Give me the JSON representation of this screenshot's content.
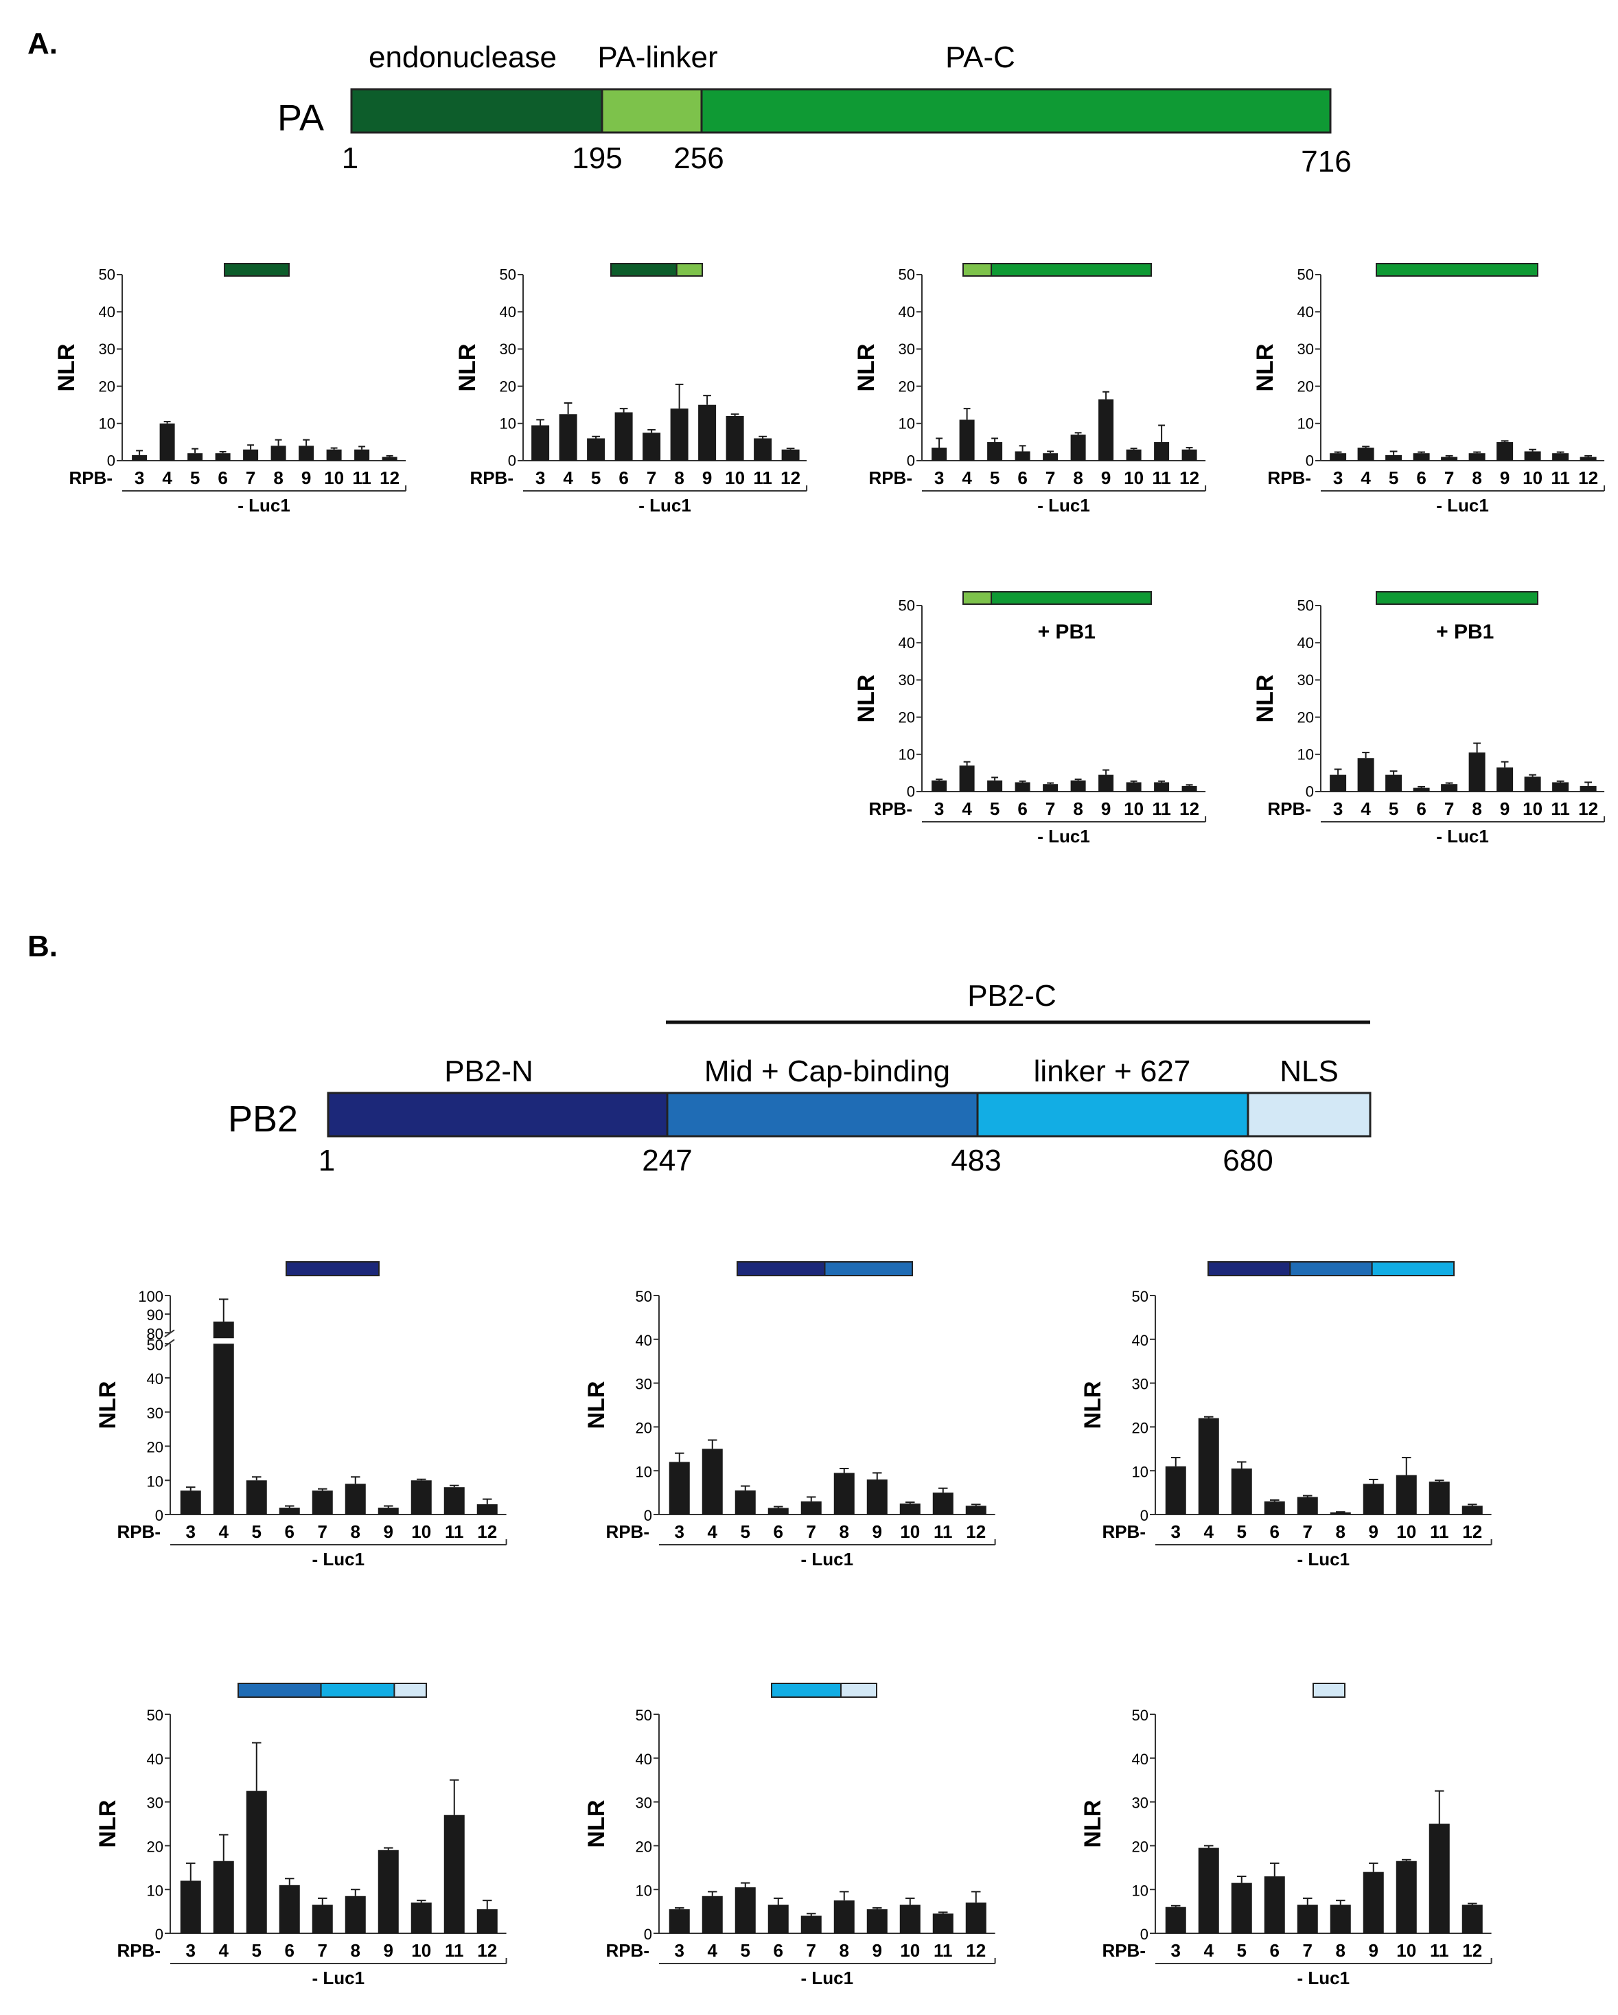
{
  "colors": {
    "endonuclease": "#0d5d2b",
    "pa_linker": "#7dc24b",
    "pa_c": "#0f9a34",
    "pb2_n": "#1c2879",
    "mid_cap": "#1f6cb5",
    "linker_627": "#12ade4",
    "nls": "#d3e8f6",
    "bar": "#1a1a1a",
    "outline": "#222222"
  },
  "panel_a": {
    "label": "A.",
    "protein": "PA",
    "domains": [
      {
        "name": "endonuclease",
        "start": 1,
        "end": 195,
        "color": "#0d5d2b"
      },
      {
        "name": "PA-linker",
        "start": 195,
        "end": 256,
        "color": "#7dc24b"
      },
      {
        "name": "PA-C",
        "start": 256,
        "end": 716,
        "color": "#0f9a34"
      }
    ],
    "positions": [
      "1",
      "195",
      "256",
      "716"
    ]
  },
  "panel_b": {
    "label": "B.",
    "protein": "PB2",
    "bracket_label": "PB2-C",
    "domains": [
      {
        "name": "PB2-N",
        "start": 1,
        "end": 247,
        "color": "#1c2879"
      },
      {
        "name": "Mid + Cap-binding",
        "start": 247,
        "end": 483,
        "color": "#1f6cb5"
      },
      {
        "name": "linker + 627",
        "start": 483,
        "end": 680,
        "color": "#12ade4"
      },
      {
        "name": "NLS",
        "start": 680,
        "end": 759,
        "color": "#d3e8f6"
      }
    ],
    "positions": [
      "1",
      "247",
      "483",
      "680"
    ]
  },
  "axis_text": {
    "ylabel": "NLR",
    "xprefix": "RPB-",
    "xgroup": "- Luc1",
    "pb1": "+ PB1"
  },
  "chart_data": [
    {
      "type": "bar",
      "id": "A1",
      "construct": "endonuclease",
      "segments": [
        "#0d5d2b"
      ],
      "annotation": "",
      "ylabel": "NLR",
      "ylim": [
        0,
        50
      ],
      "yticks": [
        0,
        10,
        20,
        30,
        40,
        50
      ],
      "categories": [
        "3",
        "4",
        "5",
        "6",
        "7",
        "8",
        "9",
        "10",
        "11",
        "12"
      ],
      "values": [
        1.5,
        10,
        2,
        2,
        3,
        4,
        4,
        3,
        3,
        1
      ],
      "errors": [
        1.2,
        0.5,
        1.2,
        0.4,
        1.2,
        1.6,
        1.6,
        0.4,
        0.8,
        0.3
      ]
    },
    {
      "type": "bar",
      "id": "A2",
      "construct": "endonuclease + PA-linker",
      "segments": [
        "#0d5d2b",
        "#7dc24b"
      ],
      "annotation": "",
      "ylabel": "NLR",
      "ylim": [
        0,
        50
      ],
      "yticks": [
        0,
        10,
        20,
        30,
        40,
        50
      ],
      "categories": [
        "3",
        "4",
        "5",
        "6",
        "7",
        "8",
        "9",
        "10",
        "11",
        "12"
      ],
      "values": [
        9.5,
        12.5,
        6,
        13,
        7.5,
        14,
        15,
        12,
        6,
        3
      ],
      "errors": [
        1.5,
        3,
        0.5,
        1,
        0.8,
        6.5,
        2.5,
        0.5,
        0.5,
        0.3
      ]
    },
    {
      "type": "bar",
      "id": "A3",
      "construct": "PA-linker + PA-C",
      "segments": [
        "#7dc24b",
        "#0f9a34"
      ],
      "annotation": "",
      "ylabel": "NLR",
      "ylim": [
        0,
        50
      ],
      "yticks": [
        0,
        10,
        20,
        30,
        40,
        50
      ],
      "categories": [
        "3",
        "4",
        "5",
        "6",
        "7",
        "8",
        "9",
        "10",
        "11",
        "12"
      ],
      "values": [
        3.5,
        11,
        5,
        2.5,
        2,
        7,
        16.5,
        3,
        5,
        3
      ],
      "errors": [
        2.5,
        3,
        1,
        1.5,
        0.5,
        0.5,
        2,
        0.3,
        4.5,
        0.5
      ]
    },
    {
      "type": "bar",
      "id": "A4",
      "construct": "PA-C",
      "segments": [
        "#0f9a34"
      ],
      "annotation": "",
      "ylabel": "NLR",
      "ylim": [
        0,
        50
      ],
      "yticks": [
        0,
        10,
        20,
        30,
        40,
        50
      ],
      "categories": [
        "3",
        "4",
        "5",
        "6",
        "7",
        "8",
        "9",
        "10",
        "11",
        "12"
      ],
      "values": [
        2,
        3.5,
        1.5,
        2,
        1,
        2,
        5,
        2.5,
        2,
        1
      ],
      "errors": [
        0.3,
        0.3,
        1,
        0.3,
        0.3,
        0.3,
        0.3,
        0.5,
        0.3,
        0.3
      ]
    },
    {
      "type": "bar",
      "id": "A5",
      "construct": "PA-linker + PA-C",
      "segments": [
        "#7dc24b",
        "#0f9a34"
      ],
      "annotation": "+ PB1",
      "ylabel": "NLR",
      "ylim": [
        0,
        50
      ],
      "yticks": [
        0,
        10,
        20,
        30,
        40,
        50
      ],
      "categories": [
        "3",
        "4",
        "5",
        "6",
        "7",
        "8",
        "9",
        "10",
        "11",
        "12"
      ],
      "values": [
        3,
        7,
        3,
        2.5,
        2,
        3,
        4.5,
        2.5,
        2.5,
        1.5
      ],
      "errors": [
        0.3,
        1,
        0.8,
        0.3,
        0.3,
        0.3,
        1.3,
        0.3,
        0.3,
        0.3
      ]
    },
    {
      "type": "bar",
      "id": "A6",
      "construct": "PA-C",
      "segments": [
        "#0f9a34"
      ],
      "annotation": "+ PB1",
      "ylabel": "NLR",
      "ylim": [
        0,
        50
      ],
      "yticks": [
        0,
        10,
        20,
        30,
        40,
        50
      ],
      "categories": [
        "3",
        "4",
        "5",
        "6",
        "7",
        "8",
        "9",
        "10",
        "11",
        "12"
      ],
      "values": [
        4.5,
        9,
        4.5,
        1,
        2,
        10.5,
        6.5,
        4,
        2.5,
        1.5
      ],
      "errors": [
        1.5,
        1.5,
        1,
        0.3,
        0.3,
        2.5,
        1.5,
        0.5,
        0.3,
        1
      ]
    },
    {
      "type": "bar",
      "id": "B1",
      "construct": "PB2-N",
      "segments": [
        "#1c2879"
      ],
      "annotation": "",
      "ylabel": "NLR",
      "ylim": [
        0,
        100
      ],
      "axis_break": [
        50,
        80
      ],
      "yticks": [
        0,
        10,
        20,
        30,
        40,
        50,
        80,
        90,
        100
      ],
      "categories": [
        "3",
        "4",
        "5",
        "6",
        "7",
        "8",
        "9",
        "10",
        "11",
        "12"
      ],
      "values": [
        7,
        86,
        10,
        2,
        7,
        9,
        2,
        10,
        8,
        3
      ],
      "errors": [
        1,
        12,
        1,
        0.5,
        0.5,
        2,
        0.5,
        0.3,
        0.5,
        1.5
      ]
    },
    {
      "type": "bar",
      "id": "B2",
      "construct": "PB2-N + Mid + Cap-binding",
      "segments": [
        "#1c2879",
        "#1f6cb5"
      ],
      "annotation": "",
      "ylabel": "NLR",
      "ylim": [
        0,
        50
      ],
      "yticks": [
        0,
        10,
        20,
        30,
        40,
        50
      ],
      "categories": [
        "3",
        "4",
        "5",
        "6",
        "7",
        "8",
        "9",
        "10",
        "11",
        "12"
      ],
      "values": [
        12,
        15,
        5.5,
        1.5,
        3,
        9.5,
        8,
        2.5,
        5,
        2
      ],
      "errors": [
        2,
        2,
        1,
        0.3,
        1,
        1,
        1.5,
        0.3,
        1,
        0.3
      ]
    },
    {
      "type": "bar",
      "id": "B3",
      "construct": "PB2-N + Mid + Cap-binding + linker + 627",
      "segments": [
        "#1c2879",
        "#1f6cb5",
        "#12ade4"
      ],
      "annotation": "",
      "ylabel": "NLR",
      "ylim": [
        0,
        50
      ],
      "yticks": [
        0,
        10,
        20,
        30,
        40,
        50
      ],
      "categories": [
        "3",
        "4",
        "5",
        "6",
        "7",
        "8",
        "9",
        "10",
        "11",
        "12"
      ],
      "values": [
        11,
        22,
        10.5,
        3,
        4,
        0.5,
        7,
        9,
        7.5,
        2
      ],
      "errors": [
        2,
        0.3,
        1.5,
        0.3,
        0.3,
        0.1,
        1,
        4,
        0.3,
        0.3
      ]
    },
    {
      "type": "bar",
      "id": "B4",
      "construct": "Mid + Cap-binding + linker + 627 + NLS",
      "segments": [
        "#1f6cb5",
        "#12ade4",
        "#d3e8f6"
      ],
      "annotation": "",
      "ylabel": "NLR",
      "ylim": [
        0,
        50
      ],
      "yticks": [
        0,
        10,
        20,
        30,
        40,
        50
      ],
      "categories": [
        "3",
        "4",
        "5",
        "6",
        "7",
        "8",
        "9",
        "10",
        "11",
        "12"
      ],
      "values": [
        12,
        16.5,
        32.5,
        11,
        6.5,
        8.5,
        19,
        7,
        27,
        5.5
      ],
      "errors": [
        4,
        6,
        11,
        1.5,
        1.5,
        1.5,
        0.5,
        0.5,
        8,
        2
      ]
    },
    {
      "type": "bar",
      "id": "B5",
      "construct": "linker + 627 + NLS",
      "segments": [
        "#12ade4",
        "#d3e8f6"
      ],
      "annotation": "",
      "ylabel": "NLR",
      "ylim": [
        0,
        50
      ],
      "yticks": [
        0,
        10,
        20,
        30,
        40,
        50
      ],
      "categories": [
        "3",
        "4",
        "5",
        "6",
        "7",
        "8",
        "9",
        "10",
        "11",
        "12"
      ],
      "values": [
        5.5,
        8.5,
        10.5,
        6.5,
        4,
        7.5,
        5.5,
        6.5,
        4.5,
        7
      ],
      "errors": [
        0.3,
        1,
        1,
        1.5,
        0.5,
        2,
        0.3,
        1.5,
        0.3,
        2.5
      ]
    },
    {
      "type": "bar",
      "id": "B6",
      "construct": "NLS",
      "segments": [
        "#d3e8f6"
      ],
      "annotation": "",
      "ylabel": "NLR",
      "ylim": [
        0,
        50
      ],
      "yticks": [
        0,
        10,
        20,
        30,
        40,
        50
      ],
      "categories": [
        "3",
        "4",
        "5",
        "6",
        "7",
        "8",
        "9",
        "10",
        "11",
        "12"
      ],
      "values": [
        6,
        19.5,
        11.5,
        13,
        6.5,
        6.5,
        14,
        16.5,
        25,
        6.5
      ],
      "errors": [
        0.3,
        0.5,
        1.5,
        3,
        1.5,
        1,
        2,
        0.3,
        7.5,
        0.3
      ]
    }
  ]
}
